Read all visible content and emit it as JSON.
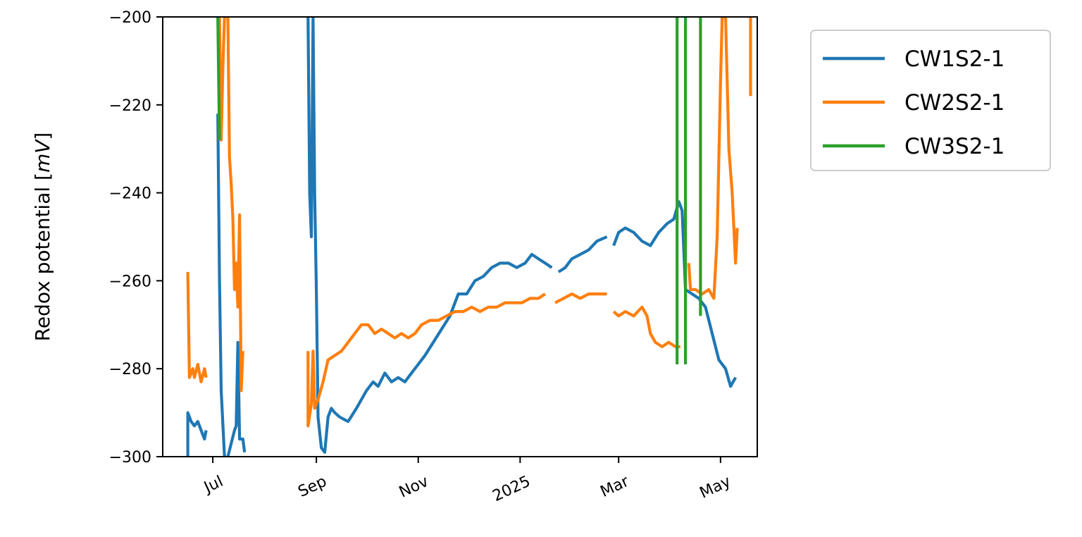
{
  "chart_data": {
    "type": "line",
    "title": "",
    "xlabel": "",
    "ylabel": "Redox potential [mV]",
    "ylabel_parts": {
      "text": "Redox potential [",
      "unit": "mV",
      "close": "]"
    },
    "xlim": [
      "2024-06-01",
      "2025-05-23"
    ],
    "ylim": [
      -300,
      -200
    ],
    "x_ticks": [
      {
        "date": "2024-07-01",
        "label": "Jul"
      },
      {
        "date": "2024-09-01",
        "label": "Sep"
      },
      {
        "date": "2024-11-01",
        "label": "Nov"
      },
      {
        "date": "2025-01-01",
        "label": "2025"
      },
      {
        "date": "2025-03-01",
        "label": "Mar"
      },
      {
        "date": "2025-05-01",
        "label": "May"
      }
    ],
    "y_ticks": [
      {
        "value": -300,
        "label": "−300"
      },
      {
        "value": -280,
        "label": "−280"
      },
      {
        "value": -260,
        "label": "−260"
      },
      {
        "value": -240,
        "label": "−240"
      },
      {
        "value": -220,
        "label": "−220"
      },
      {
        "value": -200,
        "label": "−200"
      }
    ],
    "grid": false,
    "legend_placement": "outside-top-right",
    "series": [
      {
        "name": "CW1S2-1",
        "color": "#1f77b4",
        "segments": [
          [
            [
              "2024-06-16",
              -300
            ],
            [
              "2024-06-16",
              -290
            ],
            [
              "2024-06-18",
              -292
            ],
            [
              "2024-06-20",
              -293
            ],
            [
              "2024-06-22",
              -292
            ],
            [
              "2024-06-24",
              -294
            ],
            [
              "2024-06-26",
              -296
            ],
            [
              "2024-06-27",
              -294
            ]
          ],
          [
            [
              "2024-07-04",
              -222
            ],
            [
              "2024-07-05",
              -260
            ],
            [
              "2024-07-06",
              -285
            ],
            [
              "2024-07-08",
              -300
            ]
          ],
          [
            [
              "2024-07-10",
              -300
            ],
            [
              "2024-07-12",
              -297
            ],
            [
              "2024-07-14",
              -294
            ],
            [
              "2024-07-15",
              -293
            ],
            [
              "2024-07-16",
              -274
            ],
            [
              "2024-07-17",
              -296
            ],
            [
              "2024-07-19",
              -296
            ],
            [
              "2024-07-20",
              -299
            ]
          ],
          [
            [
              "2024-08-27",
              -200
            ],
            [
              "2024-08-28",
              -240
            ],
            [
              "2024-08-29",
              -250
            ],
            [
              "2024-08-30",
              -200
            ],
            [
              "2024-08-31",
              -240
            ],
            [
              "2024-09-01",
              -262
            ],
            [
              "2024-09-02",
              -291
            ],
            [
              "2024-09-04",
              -298
            ],
            [
              "2024-09-06",
              -299
            ],
            [
              "2024-09-08",
              -291
            ],
            [
              "2024-09-10",
              -289
            ],
            [
              "2024-09-12",
              -290
            ],
            [
              "2024-09-15",
              -291
            ],
            [
              "2024-09-20",
              -292
            ],
            [
              "2024-09-25",
              -289
            ],
            [
              "2024-09-28",
              -287
            ],
            [
              "2024-10-01",
              -285
            ],
            [
              "2024-10-05",
              -283
            ],
            [
              "2024-10-08",
              -284
            ],
            [
              "2024-10-12",
              -281
            ],
            [
              "2024-10-16",
              -283
            ],
            [
              "2024-10-20",
              -282
            ],
            [
              "2024-10-24",
              -283
            ],
            [
              "2024-10-28",
              -281
            ],
            [
              "2024-11-01",
              -279
            ],
            [
              "2024-11-05",
              -277
            ],
            [
              "2024-11-10",
              -274
            ],
            [
              "2024-11-15",
              -271
            ],
            [
              "2024-11-20",
              -268
            ],
            [
              "2024-11-25",
              -263
            ],
            [
              "2024-11-30",
              -263
            ],
            [
              "2024-12-05",
              -260
            ],
            [
              "2024-12-10",
              -259
            ],
            [
              "2024-12-15",
              -257
            ],
            [
              "2024-12-20",
              -256
            ],
            [
              "2024-12-25",
              -256
            ],
            [
              "2024-12-30",
              -257
            ],
            [
              "2025-01-04",
              -256
            ],
            [
              "2025-01-08",
              -254
            ],
            [
              "2025-01-12",
              -255
            ],
            [
              "2025-01-16",
              -256
            ],
            [
              "2025-01-20",
              -257
            ]
          ],
          [
            [
              "2025-01-24",
              -258
            ],
            [
              "2025-01-28",
              -257
            ],
            [
              "2025-02-01",
              -255
            ],
            [
              "2025-02-06",
              -254
            ],
            [
              "2025-02-11",
              -253
            ],
            [
              "2025-02-16",
              -251
            ],
            [
              "2025-02-22",
              -250
            ]
          ],
          [
            [
              "2025-02-26",
              -252
            ],
            [
              "2025-03-01",
              -249
            ],
            [
              "2025-03-05",
              -248
            ],
            [
              "2025-03-10",
              -249
            ],
            [
              "2025-03-15",
              -251
            ],
            [
              "2025-03-20",
              -252
            ],
            [
              "2025-03-25",
              -249
            ],
            [
              "2025-03-30",
              -247
            ],
            [
              "2025-04-03",
              -246
            ],
            [
              "2025-04-06",
              -242
            ],
            [
              "2025-04-08",
              -244
            ],
            [
              "2025-04-10",
              -262
            ],
            [
              "2025-04-14",
              -263
            ],
            [
              "2025-04-18",
              -264
            ],
            [
              "2025-04-22",
              -266
            ],
            [
              "2025-04-26",
              -272
            ],
            [
              "2025-04-30",
              -278
            ],
            [
              "2025-05-04",
              -280
            ],
            [
              "2025-05-07",
              -284
            ],
            [
              "2025-05-10",
              -282
            ]
          ]
        ]
      },
      {
        "name": "CW2S2-1",
        "color": "#ff7f0e",
        "segments": [
          [
            [
              "2024-06-16",
              -258
            ],
            [
              "2024-06-17",
              -282
            ],
            [
              "2024-06-19",
              -280
            ],
            [
              "2024-06-20",
              -282
            ],
            [
              "2024-06-22",
              -279
            ],
            [
              "2024-06-24",
              -283
            ],
            [
              "2024-06-26",
              -280
            ],
            [
              "2024-06-27",
              -282
            ]
          ],
          [
            [
              "2024-07-05",
              -200
            ],
            [
              "2024-07-06",
              -228
            ],
            [
              "2024-07-07",
              -212
            ],
            [
              "2024-07-08",
              -200
            ],
            [
              "2024-07-10",
              -200
            ],
            [
              "2024-07-11",
              -232
            ],
            [
              "2024-07-12",
              -238
            ],
            [
              "2024-07-13",
              -246
            ],
            [
              "2024-07-14",
              -262
            ],
            [
              "2024-07-15",
              -256
            ],
            [
              "2024-07-16",
              -266
            ],
            [
              "2024-07-17",
              -245
            ],
            [
              "2024-07-18",
              -285
            ],
            [
              "2024-07-19",
              -276
            ]
          ],
          [
            [
              "2024-08-27",
              -276
            ],
            [
              "2024-08-27",
              -293
            ],
            [
              "2024-08-29",
              -288
            ],
            [
              "2024-08-30",
              -276
            ],
            [
              "2024-08-31",
              -289
            ],
            [
              "2024-09-02",
              -287
            ],
            [
              "2024-09-05",
              -283
            ],
            [
              "2024-09-08",
              -278
            ],
            [
              "2024-09-12",
              -277
            ],
            [
              "2024-09-16",
              -276
            ],
            [
              "2024-09-20",
              -274
            ],
            [
              "2024-09-24",
              -272
            ],
            [
              "2024-09-28",
              -270
            ],
            [
              "2024-10-02",
              -270
            ],
            [
              "2024-10-06",
              -272
            ],
            [
              "2024-10-10",
              -271
            ],
            [
              "2024-10-14",
              -272
            ],
            [
              "2024-10-18",
              -273
            ],
            [
              "2024-10-22",
              -272
            ],
            [
              "2024-10-26",
              -273
            ],
            [
              "2024-10-30",
              -272
            ],
            [
              "2024-11-03",
              -270
            ],
            [
              "2024-11-08",
              -269
            ],
            [
              "2024-11-13",
              -269
            ],
            [
              "2024-11-18",
              -268
            ],
            [
              "2024-11-23",
              -267
            ],
            [
              "2024-11-28",
              -267
            ],
            [
              "2024-12-03",
              -266
            ],
            [
              "2024-12-08",
              -267
            ],
            [
              "2024-12-13",
              -266
            ],
            [
              "2024-12-18",
              -266
            ],
            [
              "2024-12-23",
              -265
            ],
            [
              "2024-12-28",
              -265
            ],
            [
              "2025-01-02",
              -265
            ],
            [
              "2025-01-07",
              -264
            ],
            [
              "2025-01-12",
              -264
            ],
            [
              "2025-01-16",
              -263
            ]
          ],
          [
            [
              "2025-01-22",
              -265
            ],
            [
              "2025-01-27",
              -264
            ],
            [
              "2025-02-01",
              -263
            ],
            [
              "2025-02-06",
              -264
            ],
            [
              "2025-02-11",
              -263
            ],
            [
              "2025-02-16",
              -263
            ],
            [
              "2025-02-22",
              -263
            ]
          ],
          [
            [
              "2025-02-26",
              -267
            ],
            [
              "2025-03-01",
              -268
            ],
            [
              "2025-03-05",
              -267
            ],
            [
              "2025-03-10",
              -268
            ],
            [
              "2025-03-15",
              -266
            ],
            [
              "2025-03-18",
              -268
            ],
            [
              "2025-03-20",
              -272
            ],
            [
              "2025-03-23",
              -274
            ],
            [
              "2025-03-27",
              -275
            ],
            [
              "2025-03-31",
              -274
            ],
            [
              "2025-04-04",
              -275
            ],
            [
              "2025-04-07",
              -275
            ]
          ],
          [
            [
              "2025-04-12",
              -256
            ],
            [
              "2025-04-13",
              -262
            ],
            [
              "2025-04-16",
              -262
            ],
            [
              "2025-04-20",
              -263
            ],
            [
              "2025-04-24",
              -262
            ],
            [
              "2025-04-27",
              -264
            ],
            [
              "2025-04-29",
              -250
            ],
            [
              "2025-05-01",
              -215
            ],
            [
              "2025-05-02",
              -200
            ],
            [
              "2025-05-04",
              -200
            ],
            [
              "2025-05-06",
              -230
            ],
            [
              "2025-05-08",
              -240
            ],
            [
              "2025-05-10",
              -256
            ],
            [
              "2025-05-11",
              -248
            ]
          ],
          [
            [
              "2025-05-19",
              -200
            ],
            [
              "2025-05-19",
              -218
            ]
          ]
        ]
      },
      {
        "name": "CW3S2-1",
        "color": "#2ca02c",
        "segments": [
          [
            [
              "2024-07-04",
              -200
            ],
            [
              "2024-07-05",
              -228
            ]
          ],
          [
            [
              "2025-04-05",
              -200
            ],
            [
              "2025-04-05",
              -279
            ]
          ],
          [
            [
              "2025-04-10",
              -200
            ],
            [
              "2025-04-10",
              -279
            ]
          ],
          [
            [
              "2025-04-19",
              -200
            ],
            [
              "2025-04-19",
              -268
            ]
          ]
        ]
      }
    ]
  }
}
